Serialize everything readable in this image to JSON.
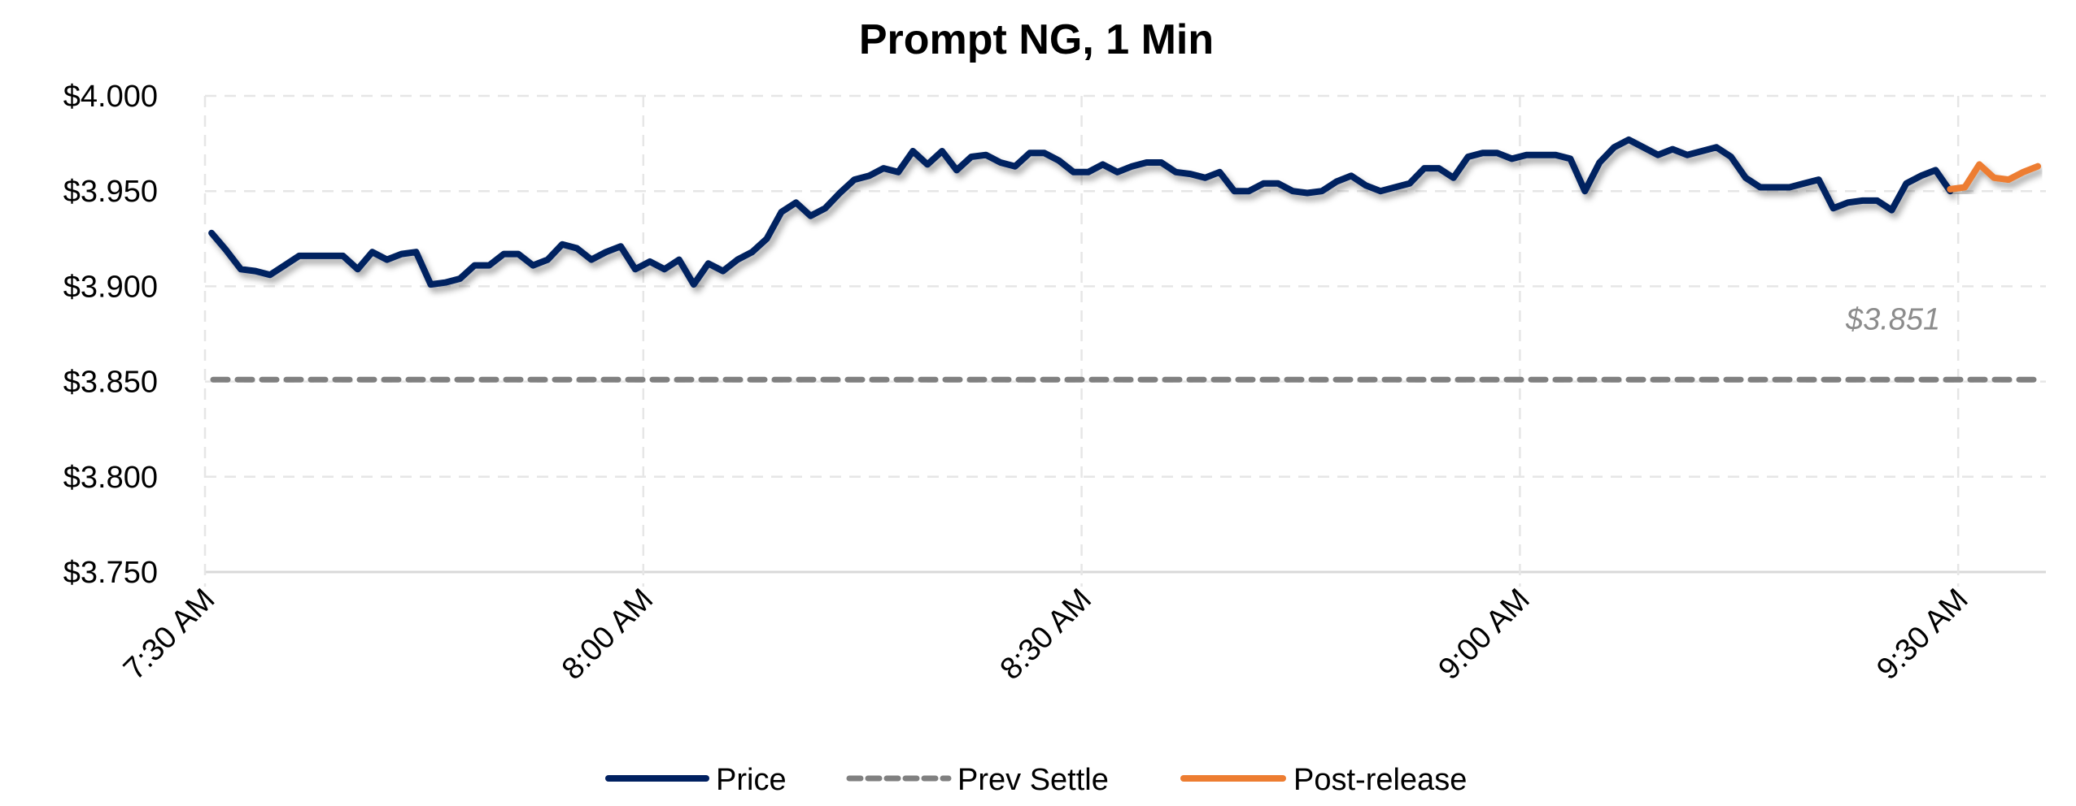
{
  "chart_data": {
    "type": "line",
    "title": "Prompt NG, 1 Min",
    "xlabel": "",
    "ylabel": "",
    "ylim": [
      3.75,
      4.0
    ],
    "yticks": [
      "$3.750",
      "$3.800",
      "$3.850",
      "$3.900",
      "$3.950",
      "$4.000"
    ],
    "ytick_values": [
      3.75,
      3.8,
      3.85,
      3.9,
      3.95,
      4.0
    ],
    "xticks": [
      "7:30 AM",
      "8:00 AM",
      "8:30 AM",
      "9:00 AM",
      "9:30 AM"
    ],
    "xtick_times": [
      "7:30",
      "8:00",
      "8:30",
      "9:00",
      "9:30"
    ],
    "xlim": [
      "7:30",
      "9:35"
    ],
    "grid": true,
    "legend_position": "bottom",
    "x": [
      "7:30",
      "7:31",
      "7:32",
      "7:33",
      "7:34",
      "7:35",
      "7:36",
      "7:37",
      "7:38",
      "7:39",
      "7:40",
      "7:41",
      "7:42",
      "7:43",
      "7:44",
      "7:45",
      "7:46",
      "7:47",
      "7:48",
      "7:49",
      "7:50",
      "7:51",
      "7:52",
      "7:53",
      "7:54",
      "7:55",
      "7:56",
      "7:57",
      "7:58",
      "7:59",
      "8:00",
      "8:01",
      "8:02",
      "8:03",
      "8:04",
      "8:05",
      "8:06",
      "8:07",
      "8:08",
      "8:09",
      "8:10",
      "8:11",
      "8:12",
      "8:13",
      "8:14",
      "8:15",
      "8:16",
      "8:17",
      "8:18",
      "8:19",
      "8:20",
      "8:21",
      "8:22",
      "8:23",
      "8:24",
      "8:25",
      "8:26",
      "8:27",
      "8:28",
      "8:29",
      "8:30",
      "8:31",
      "8:32",
      "8:33",
      "8:34",
      "8:35",
      "8:36",
      "8:37",
      "8:38",
      "8:39",
      "8:40",
      "8:41",
      "8:42",
      "8:43",
      "8:44",
      "8:45",
      "8:46",
      "8:47",
      "8:48",
      "8:49",
      "8:50",
      "8:51",
      "8:52",
      "8:53",
      "8:54",
      "8:55",
      "8:56",
      "8:57",
      "8:58",
      "8:59",
      "9:00",
      "9:01",
      "9:02",
      "9:03",
      "9:04",
      "9:05",
      "9:06",
      "9:07",
      "9:08",
      "9:09",
      "9:10",
      "9:11",
      "9:12",
      "9:13",
      "9:14",
      "9:15",
      "9:16",
      "9:17",
      "9:18",
      "9:19",
      "9:20",
      "9:21",
      "9:22",
      "9:23",
      "9:24",
      "9:25",
      "9:26",
      "9:27",
      "9:28",
      "9:29"
    ],
    "series": [
      {
        "name": "Price",
        "color": "#002060",
        "style": "solid",
        "values": [
          3.928,
          3.919,
          3.909,
          3.908,
          3.906,
          3.911,
          3.916,
          3.916,
          3.916,
          3.916,
          3.909,
          3.918,
          3.914,
          3.917,
          3.918,
          3.901,
          3.902,
          3.904,
          3.911,
          3.911,
          3.917,
          3.917,
          3.911,
          3.914,
          3.922,
          3.92,
          3.914,
          3.918,
          3.921,
          3.909,
          3.913,
          3.909,
          3.914,
          3.901,
          3.912,
          3.908,
          3.914,
          3.918,
          3.925,
          3.939,
          3.944,
          3.937,
          3.941,
          3.949,
          3.956,
          3.958,
          3.962,
          3.96,
          3.971,
          3.964,
          3.971,
          3.961,
          3.968,
          3.969,
          3.965,
          3.963,
          3.97,
          3.97,
          3.966,
          3.96,
          3.96,
          3.964,
          3.96,
          3.963,
          3.965,
          3.965,
          3.96,
          3.959,
          3.957,
          3.96,
          3.95,
          3.95,
          3.954,
          3.954,
          3.95,
          3.949,
          3.95,
          3.955,
          3.958,
          3.953,
          3.95,
          3.952,
          3.954,
          3.962,
          3.962,
          3.957,
          3.968,
          3.97,
          3.97,
          3.967,
          3.969,
          3.969,
          3.969,
          3.967,
          3.95,
          3.965,
          3.973,
          3.977,
          3.973,
          3.969,
          3.972,
          3.969,
          3.971,
          3.973,
          3.968,
          3.957,
          3.952,
          3.952,
          3.952,
          3.954,
          3.956,
          3.941,
          3.944,
          3.945,
          3.945,
          3.94,
          3.954,
          3.958,
          3.961,
          3.95
        ]
      },
      {
        "name": "Prev Settle",
        "color": "#808080",
        "style": "dashed",
        "x": [
          "7:30",
          "9:35"
        ],
        "values": [
          3.851,
          3.851
        ],
        "annotation": "$3.851"
      },
      {
        "name": "Post-release",
        "color": "#ED7D31",
        "style": "solid",
        "x": [
          "9:29",
          "9:30",
          "9:31",
          "9:32",
          "9:33",
          "9:34",
          "9:35"
        ],
        "values": [
          3.951,
          3.952,
          3.964,
          3.957,
          3.956,
          3.96,
          3.963
        ]
      }
    ]
  }
}
